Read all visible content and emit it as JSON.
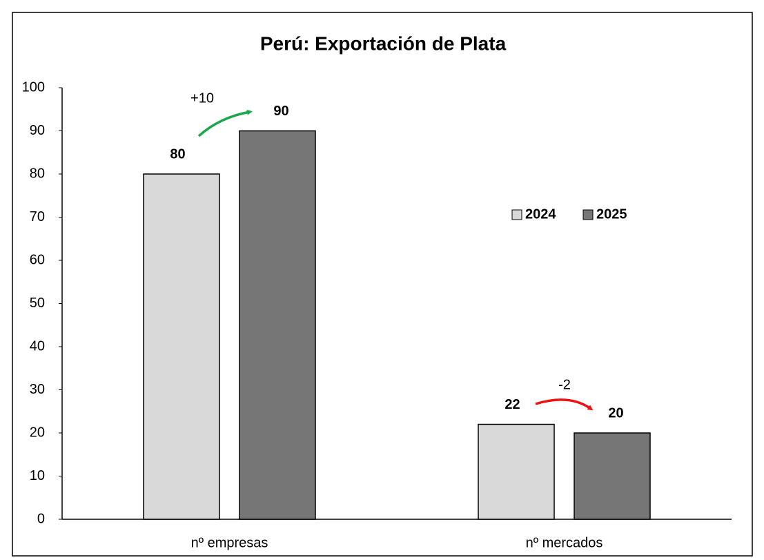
{
  "chart_data": {
    "type": "bar",
    "title": "Perú: Exportación de Plata",
    "categories": [
      "nº empresas",
      "nº mercados"
    ],
    "series": [
      {
        "name": "2024",
        "color": "#d9d9d9",
        "values": [
          80,
          22
        ]
      },
      {
        "name": "2025",
        "color": "#767676",
        "values": [
          90,
          20
        ]
      }
    ],
    "ylim": [
      0,
      100
    ],
    "yticks": [
      0,
      10,
      20,
      30,
      40,
      50,
      60,
      70,
      80,
      90,
      100
    ],
    "grid": false,
    "legend": "right",
    "annotations": [
      "+10",
      "-2"
    ]
  }
}
